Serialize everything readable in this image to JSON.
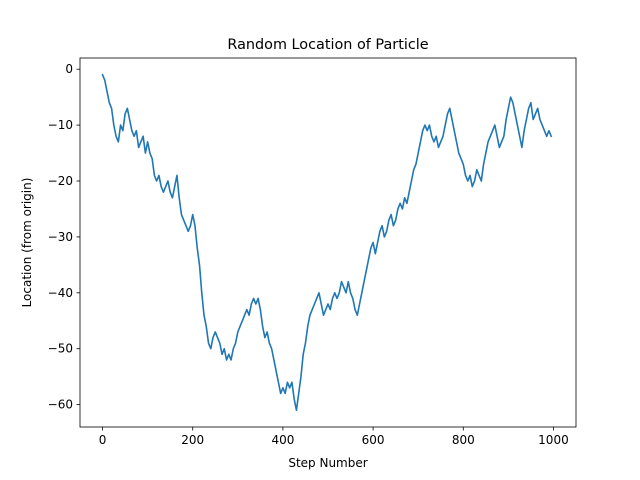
{
  "chart_data": {
    "type": "line",
    "title": "Random Location of Particle",
    "xlabel": "Step Number",
    "ylabel": "Location (from origin)",
    "xlim": [
      -50,
      1050
    ],
    "ylim": [
      -64,
      2
    ],
    "x_ticks": [
      0,
      200,
      400,
      600,
      800,
      1000
    ],
    "x_tick_labels": [
      "0",
      "200",
      "400",
      "600",
      "800",
      "1000"
    ],
    "y_ticks": [
      0,
      -10,
      -20,
      -30,
      -40,
      -50,
      -60
    ],
    "y_tick_labels": [
      "0",
      "−10",
      "−20",
      "−30",
      "−40",
      "−50",
      "−60"
    ],
    "grid": false,
    "series": [
      {
        "color": "#1f77b4",
        "points": [
          [
            0,
            -1
          ],
          [
            5,
            -2
          ],
          [
            10,
            -4
          ],
          [
            15,
            -6
          ],
          [
            20,
            -7
          ],
          [
            25,
            -10
          ],
          [
            30,
            -12
          ],
          [
            35,
            -13
          ],
          [
            40,
            -10
          ],
          [
            45,
            -11
          ],
          [
            50,
            -8
          ],
          [
            55,
            -7
          ],
          [
            60,
            -9
          ],
          [
            65,
            -11
          ],
          [
            70,
            -12
          ],
          [
            75,
            -11
          ],
          [
            80,
            -14
          ],
          [
            85,
            -13
          ],
          [
            90,
            -12
          ],
          [
            95,
            -15
          ],
          [
            100,
            -13
          ],
          [
            105,
            -15
          ],
          [
            110,
            -16
          ],
          [
            115,
            -19
          ],
          [
            120,
            -20
          ],
          [
            125,
            -19
          ],
          [
            130,
            -21
          ],
          [
            135,
            -22
          ],
          [
            140,
            -21
          ],
          [
            145,
            -20
          ],
          [
            150,
            -22
          ],
          [
            155,
            -23
          ],
          [
            160,
            -21
          ],
          [
            165,
            -19
          ],
          [
            170,
            -23
          ],
          [
            175,
            -26
          ],
          [
            180,
            -27
          ],
          [
            185,
            -28
          ],
          [
            190,
            -29
          ],
          [
            195,
            -28
          ],
          [
            200,
            -26
          ],
          [
            205,
            -28
          ],
          [
            210,
            -32
          ],
          [
            215,
            -35
          ],
          [
            220,
            -40
          ],
          [
            225,
            -44
          ],
          [
            230,
            -46
          ],
          [
            235,
            -49
          ],
          [
            240,
            -50
          ],
          [
            245,
            -48
          ],
          [
            250,
            -47
          ],
          [
            255,
            -48
          ],
          [
            260,
            -49
          ],
          [
            265,
            -51
          ],
          [
            270,
            -50
          ],
          [
            275,
            -52
          ],
          [
            280,
            -51
          ],
          [
            285,
            -52
          ],
          [
            290,
            -50
          ],
          [
            295,
            -49
          ],
          [
            300,
            -47
          ],
          [
            305,
            -46
          ],
          [
            310,
            -45
          ],
          [
            315,
            -44
          ],
          [
            320,
            -43
          ],
          [
            325,
            -44
          ],
          [
            330,
            -42
          ],
          [
            335,
            -41
          ],
          [
            340,
            -42
          ],
          [
            345,
            -41
          ],
          [
            350,
            -43
          ],
          [
            355,
            -46
          ],
          [
            360,
            -48
          ],
          [
            365,
            -47
          ],
          [
            370,
            -49
          ],
          [
            375,
            -50
          ],
          [
            380,
            -52
          ],
          [
            385,
            -54
          ],
          [
            390,
            -56
          ],
          [
            395,
            -58
          ],
          [
            400,
            -57
          ],
          [
            405,
            -58
          ],
          [
            410,
            -56
          ],
          [
            415,
            -57
          ],
          [
            420,
            -56
          ],
          [
            425,
            -59
          ],
          [
            430,
            -61
          ],
          [
            435,
            -58
          ],
          [
            440,
            -55
          ],
          [
            445,
            -51
          ],
          [
            450,
            -49
          ],
          [
            455,
            -46
          ],
          [
            460,
            -44
          ],
          [
            465,
            -43
          ],
          [
            470,
            -42
          ],
          [
            475,
            -41
          ],
          [
            480,
            -40
          ],
          [
            485,
            -42
          ],
          [
            490,
            -44
          ],
          [
            495,
            -43
          ],
          [
            500,
            -42
          ],
          [
            505,
            -43
          ],
          [
            510,
            -41
          ],
          [
            515,
            -40
          ],
          [
            520,
            -41
          ],
          [
            525,
            -40
          ],
          [
            530,
            -38
          ],
          [
            535,
            -39
          ],
          [
            540,
            -40
          ],
          [
            545,
            -38
          ],
          [
            550,
            -40
          ],
          [
            555,
            -41
          ],
          [
            560,
            -43
          ],
          [
            565,
            -44
          ],
          [
            570,
            -42
          ],
          [
            575,
            -40
          ],
          [
            580,
            -38
          ],
          [
            585,
            -36
          ],
          [
            590,
            -34
          ],
          [
            595,
            -32
          ],
          [
            600,
            -31
          ],
          [
            605,
            -33
          ],
          [
            610,
            -31
          ],
          [
            615,
            -29
          ],
          [
            620,
            -28
          ],
          [
            625,
            -30
          ],
          [
            630,
            -29
          ],
          [
            635,
            -27
          ],
          [
            640,
            -26
          ],
          [
            645,
            -28
          ],
          [
            650,
            -27
          ],
          [
            655,
            -25
          ],
          [
            660,
            -24
          ],
          [
            665,
            -25
          ],
          [
            670,
            -23
          ],
          [
            675,
            -24
          ],
          [
            680,
            -22
          ],
          [
            685,
            -20
          ],
          [
            690,
            -18
          ],
          [
            695,
            -17
          ],
          [
            700,
            -15
          ],
          [
            705,
            -13
          ],
          [
            710,
            -11
          ],
          [
            715,
            -10
          ],
          [
            720,
            -11
          ],
          [
            725,
            -10
          ],
          [
            730,
            -12
          ],
          [
            735,
            -13
          ],
          [
            740,
            -12
          ],
          [
            745,
            -14
          ],
          [
            750,
            -13
          ],
          [
            755,
            -12
          ],
          [
            760,
            -10
          ],
          [
            765,
            -8
          ],
          [
            770,
            -7
          ],
          [
            775,
            -9
          ],
          [
            780,
            -11
          ],
          [
            785,
            -13
          ],
          [
            790,
            -15
          ],
          [
            795,
            -16
          ],
          [
            800,
            -17
          ],
          [
            805,
            -19
          ],
          [
            810,
            -20
          ],
          [
            815,
            -19
          ],
          [
            820,
            -21
          ],
          [
            825,
            -20
          ],
          [
            830,
            -18
          ],
          [
            835,
            -19
          ],
          [
            840,
            -20
          ],
          [
            845,
            -17
          ],
          [
            850,
            -15
          ],
          [
            855,
            -13
          ],
          [
            860,
            -12
          ],
          [
            865,
            -11
          ],
          [
            870,
            -10
          ],
          [
            875,
            -12
          ],
          [
            880,
            -14
          ],
          [
            885,
            -13
          ],
          [
            890,
            -12
          ],
          [
            895,
            -9
          ],
          [
            900,
            -7
          ],
          [
            905,
            -5
          ],
          [
            910,
            -6
          ],
          [
            915,
            -8
          ],
          [
            920,
            -10
          ],
          [
            925,
            -12
          ],
          [
            930,
            -14
          ],
          [
            935,
            -11
          ],
          [
            940,
            -9
          ],
          [
            945,
            -7
          ],
          [
            950,
            -6
          ],
          [
            955,
            -9
          ],
          [
            960,
            -8
          ],
          [
            965,
            -7
          ],
          [
            970,
            -9
          ],
          [
            975,
            -10
          ],
          [
            980,
            -11
          ],
          [
            985,
            -12
          ],
          [
            990,
            -11
          ],
          [
            995,
            -12
          ]
        ]
      }
    ]
  }
}
